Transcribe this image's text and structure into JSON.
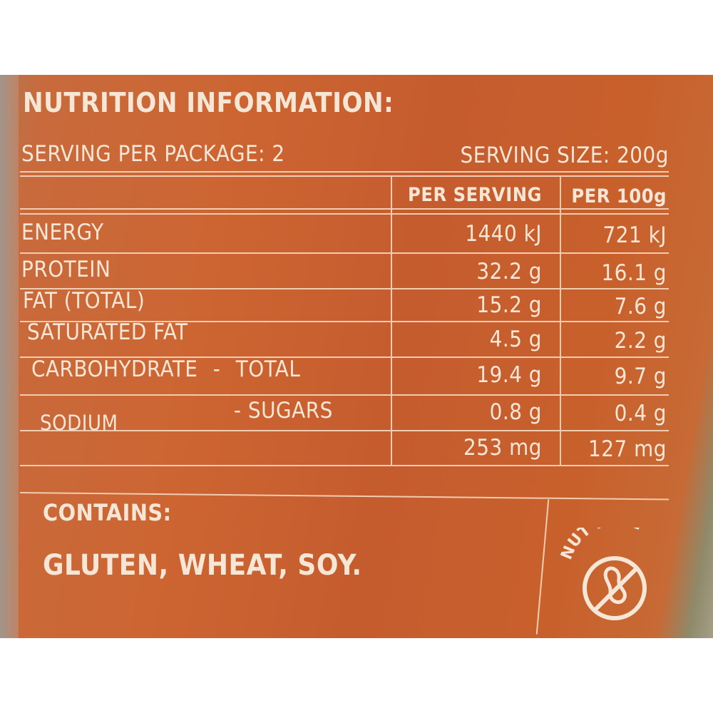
{
  "title": "NUTRITION INFORMATION:",
  "servings_per_package": "SERVING PER PACKAGE: 2",
  "serving_size": "SERVING SIZE: 200g",
  "columns": [
    "PER SERVING",
    "PER 100g"
  ],
  "rows": [
    {
      "label": "ENERGY",
      "per_serving": "1440 kJ",
      "per_100g": "721 kJ"
    },
    {
      "label": "PROTEIN",
      "per_serving": "32.2 g",
      "per_100g": "16.1 g"
    },
    {
      "label": "FAT (TOTAL)",
      "per_serving": "15.2 g",
      "per_100g": "7.6 g"
    },
    {
      "label": "SATURATED FAT",
      "per_serving": "4.5 g",
      "per_100g": "2.2 g"
    },
    {
      "label": "CARBOHYDRATE - TOTAL",
      "per_serving": "19.4 g",
      "per_100g": "9.7 g"
    },
    {
      "label": "- SUGARS",
      "per_serving": "0.8 g",
      "per_100g": "0.4 g"
    },
    {
      "label": "SODIUM",
      "per_serving": "253 mg",
      "per_100g": "127 mg"
    }
  ],
  "contains_heading": "CONTAINS:",
  "allergens": "GLUTEN, WHEAT, SOY.",
  "badge": {
    "text": "NUT FREE",
    "icon": "no-peanut-icon"
  },
  "colors": {
    "background": "#c8602e",
    "text": "#f6e6d6"
  }
}
